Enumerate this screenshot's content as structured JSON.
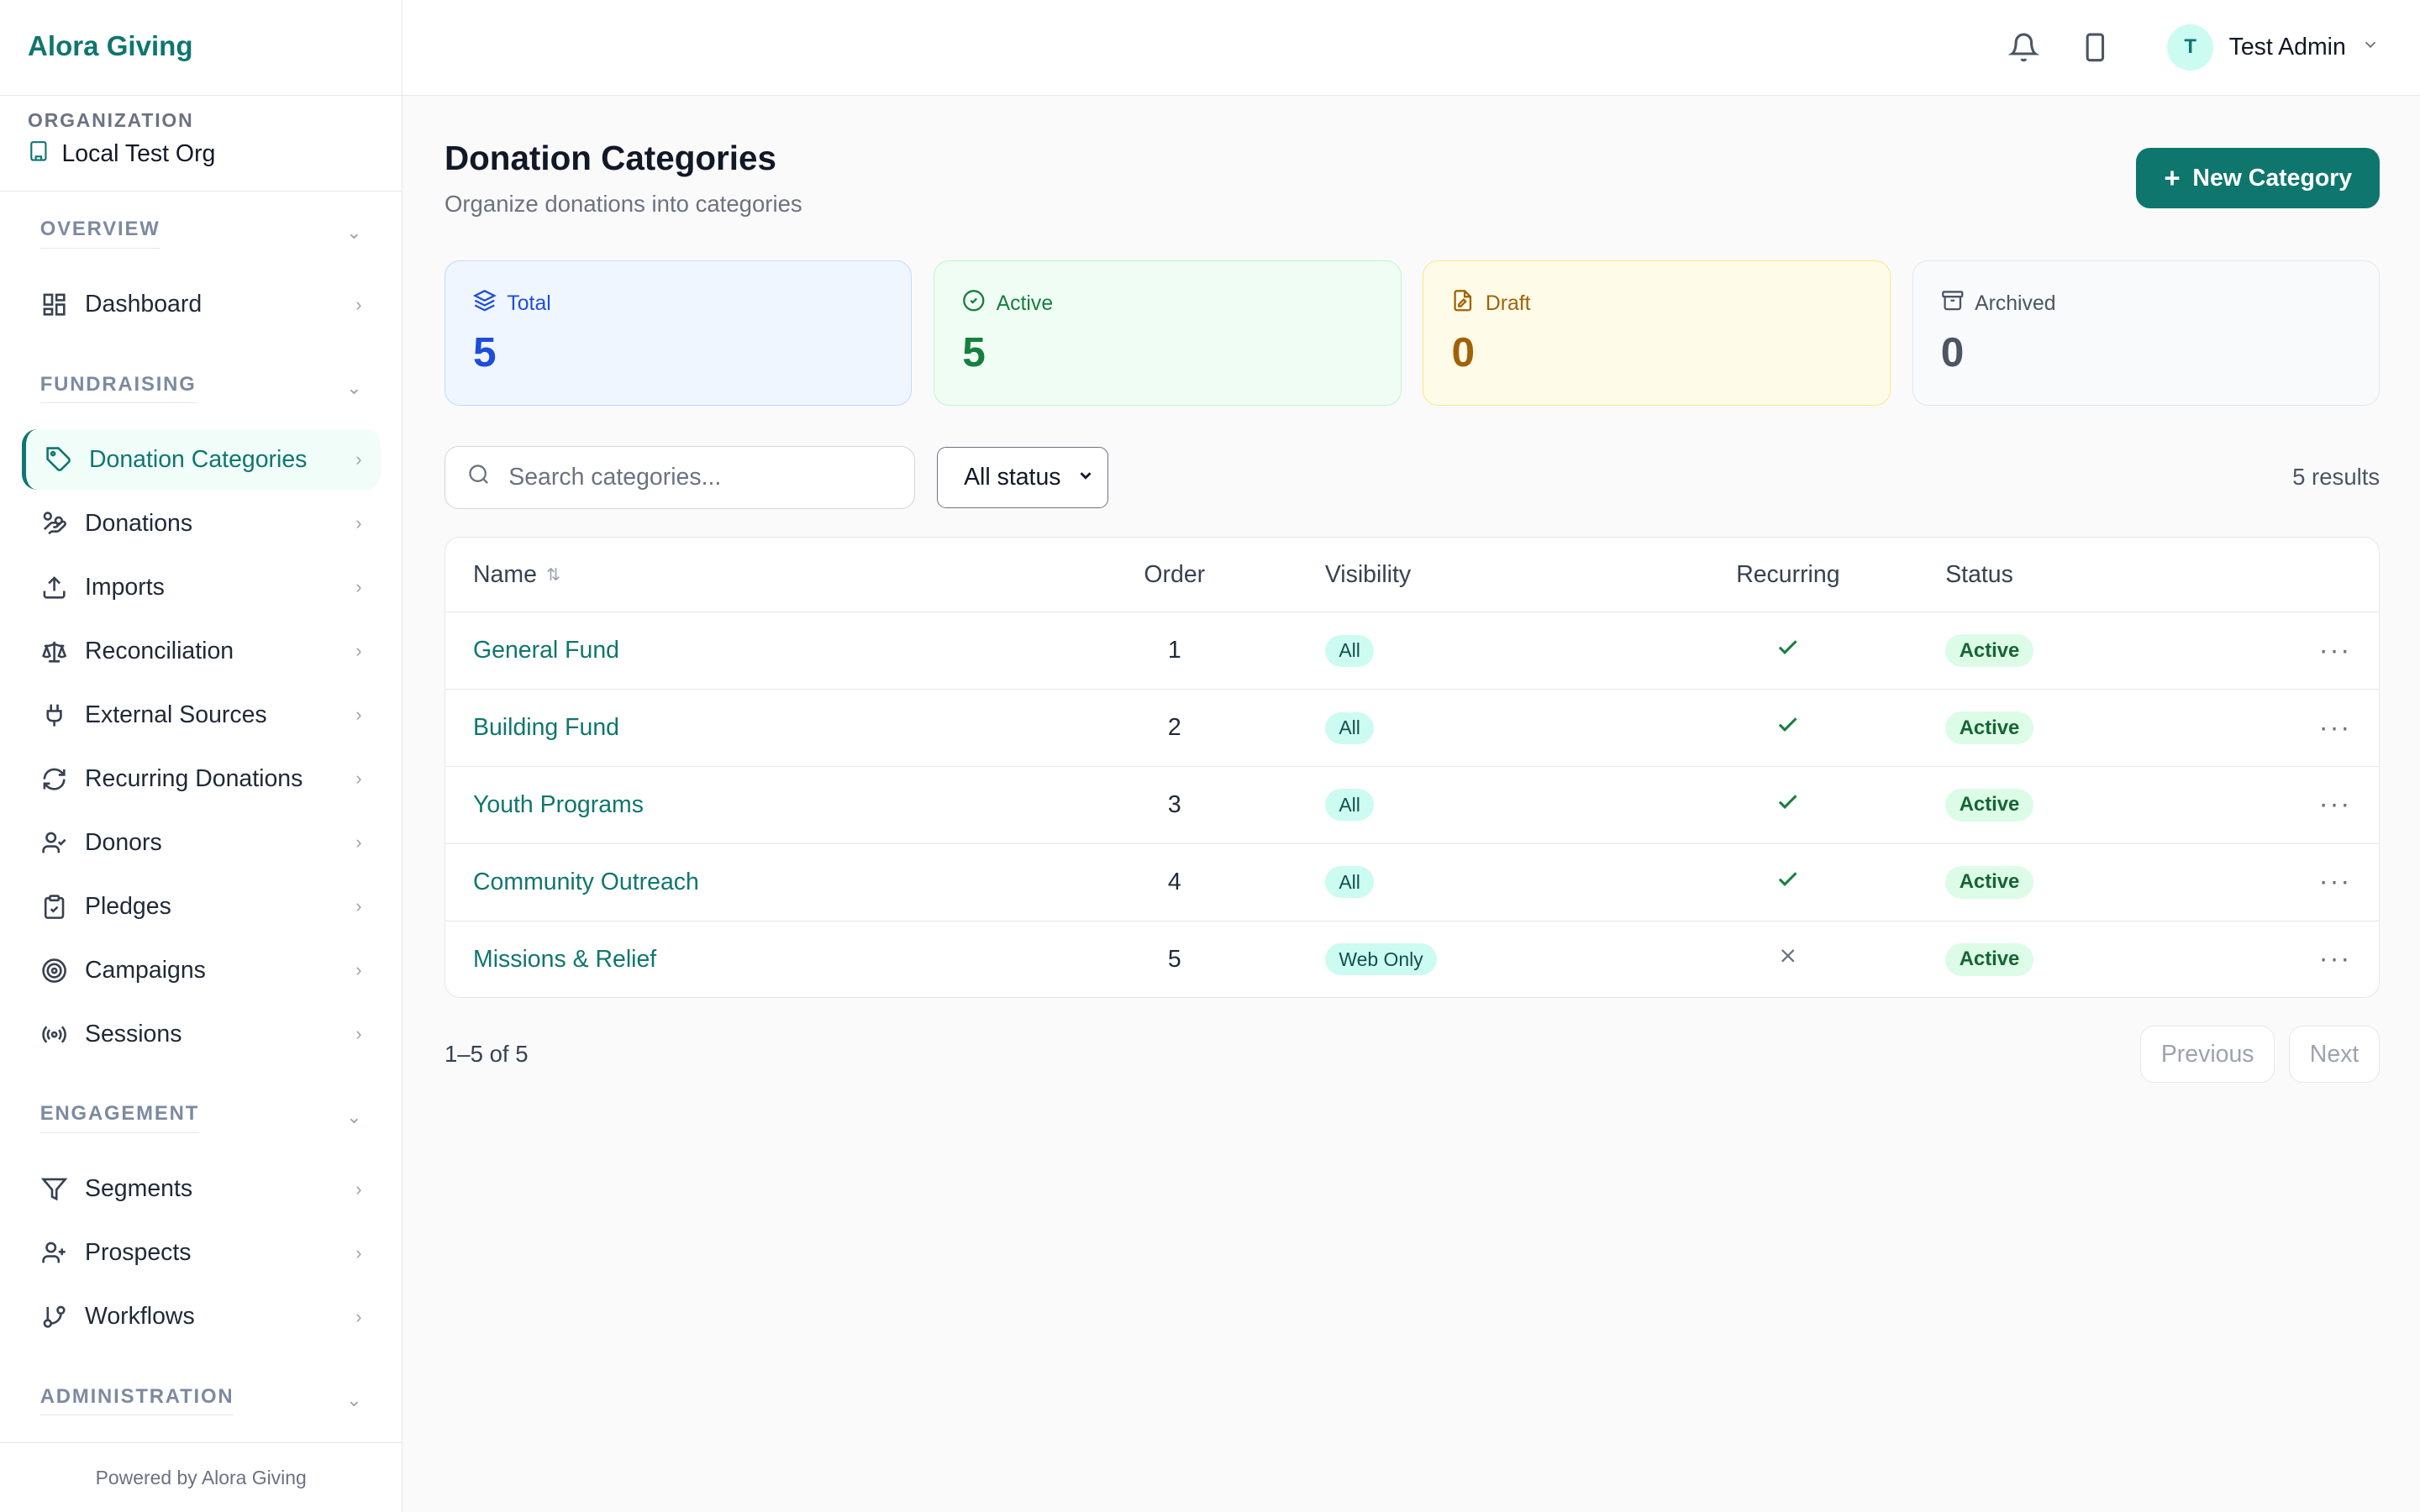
{
  "brand": "Alora Giving",
  "organization": {
    "label": "ORGANIZATION",
    "name": "Local Test Org"
  },
  "nav": {
    "overview": {
      "label": "OVERVIEW",
      "items": [
        {
          "label": "Dashboard",
          "icon": "dashboard-icon"
        }
      ]
    },
    "fundraising": {
      "label": "FUNDRAISING",
      "items": [
        {
          "label": "Donation Categories",
          "icon": "tag-icon",
          "active": true
        },
        {
          "label": "Donations",
          "icon": "hand-coins-icon"
        },
        {
          "label": "Imports",
          "icon": "upload-icon"
        },
        {
          "label": "Reconciliation",
          "icon": "scale-icon"
        },
        {
          "label": "External Sources",
          "icon": "plug-icon"
        },
        {
          "label": "Recurring Donations",
          "icon": "refresh-icon"
        },
        {
          "label": "Donors",
          "icon": "user-check-icon"
        },
        {
          "label": "Pledges",
          "icon": "clipboard-icon"
        },
        {
          "label": "Campaigns",
          "icon": "target-icon"
        },
        {
          "label": "Sessions",
          "icon": "radio-icon"
        }
      ]
    },
    "engagement": {
      "label": "ENGAGEMENT",
      "items": [
        {
          "label": "Segments",
          "icon": "filter-icon"
        },
        {
          "label": "Prospects",
          "icon": "user-plus-icon"
        },
        {
          "label": "Workflows",
          "icon": "git-branch-icon"
        }
      ]
    },
    "administration": {
      "label": "ADMINISTRATION"
    }
  },
  "footer": "Powered by Alora Giving",
  "topbar": {
    "user_initial": "T",
    "user_name": "Test Admin"
  },
  "page": {
    "title": "Donation Categories",
    "subtitle": "Organize donations into categories",
    "new_button": "New Category"
  },
  "stats": {
    "total": {
      "label": "Total",
      "value": "5"
    },
    "active": {
      "label": "Active",
      "value": "5"
    },
    "draft": {
      "label": "Draft",
      "value": "0"
    },
    "archived": {
      "label": "Archived",
      "value": "0"
    }
  },
  "filters": {
    "search_placeholder": "Search categories...",
    "status_value": "All status",
    "results": "5 results"
  },
  "table": {
    "columns": {
      "name": "Name",
      "order": "Order",
      "visibility": "Visibility",
      "recurring": "Recurring",
      "status": "Status"
    },
    "rows": [
      {
        "name": "General Fund",
        "order": "1",
        "visibility": "All",
        "recurring": true,
        "status": "Active"
      },
      {
        "name": "Building Fund",
        "order": "2",
        "visibility": "All",
        "recurring": true,
        "status": "Active"
      },
      {
        "name": "Youth Programs",
        "order": "3",
        "visibility": "All",
        "recurring": true,
        "status": "Active"
      },
      {
        "name": "Community Outreach",
        "order": "4",
        "visibility": "All",
        "recurring": true,
        "status": "Active"
      },
      {
        "name": "Missions & Relief",
        "order": "5",
        "visibility": "Web Only",
        "recurring": false,
        "status": "Active"
      }
    ]
  },
  "pagination": {
    "info": "1–5 of 5",
    "previous": "Previous",
    "next": "Next"
  },
  "colors": {
    "accent": "#0f766e",
    "total": "#1d4ed8",
    "active": "#15803d",
    "draft": "#a16207",
    "archived": "#4b5563"
  }
}
